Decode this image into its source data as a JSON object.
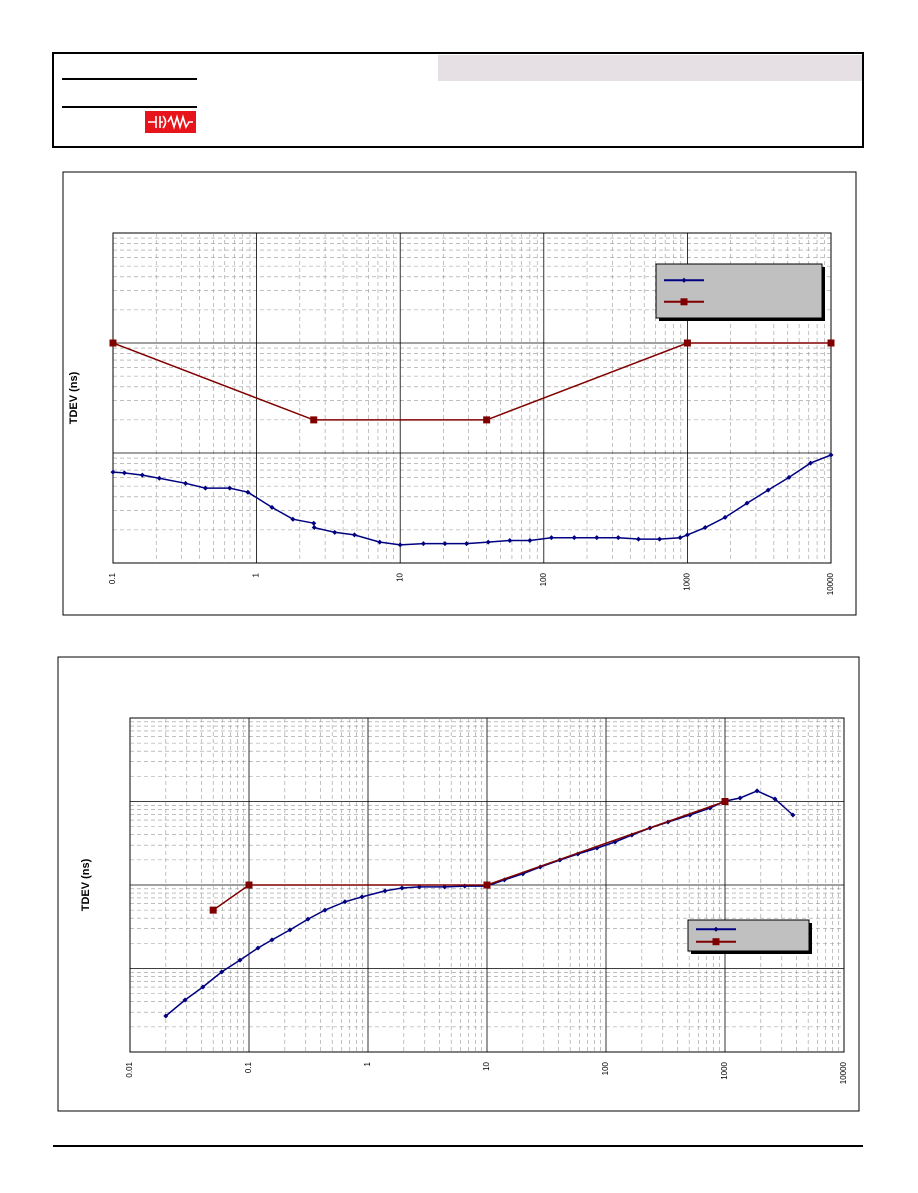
{
  "chart_data": [
    {
      "type": "line",
      "ylabel": "TDEV (ns)",
      "xlog": true,
      "ylog": true,
      "grid": true,
      "legend": "upper right",
      "xlim": [
        0.1,
        10000
      ],
      "ylim": [
        0.1,
        100
      ],
      "xticks": [
        0.1,
        1,
        10,
        100,
        1000,
        10000
      ],
      "series": [
        {
          "color": "#000080",
          "marker": "diamond",
          "x": [
            0.1,
            0.12,
            0.16,
            0.21,
            0.32,
            0.44,
            0.65,
            0.87,
            1.28,
            1.79,
            2.5,
            2.52,
            3.5,
            4.8,
            7.2,
            10,
            14.5,
            20.5,
            29,
            41,
            58,
            80,
            113,
            163,
            234,
            330,
            456,
            640,
            890,
            1000,
            1330,
            1830,
            2600,
            3650,
            5100,
            7200,
            10000
          ],
          "values": [
            0.67,
            0.66,
            0.63,
            0.59,
            0.53,
            0.48,
            0.48,
            0.44,
            0.32,
            0.25,
            0.23,
            0.21,
            0.19,
            0.18,
            0.155,
            0.146,
            0.15,
            0.15,
            0.15,
            0.155,
            0.16,
            0.16,
            0.17,
            0.17,
            0.17,
            0.17,
            0.165,
            0.165,
            0.17,
            0.18,
            0.21,
            0.26,
            0.35,
            0.46,
            0.6,
            0.81,
            0.96
          ]
        },
        {
          "color": "#800000",
          "marker": "square",
          "x": [
            0.1,
            2.5,
            40,
            1000,
            10000
          ],
          "values": [
            10,
            2,
            2,
            10,
            10
          ]
        }
      ]
    },
    {
      "type": "line",
      "ylabel": "TDEV (ns)",
      "xlog": true,
      "ylog": true,
      "grid": true,
      "legend": "lower right",
      "xlim": [
        0.01,
        10000
      ],
      "ylim": [
        0.01,
        100
      ],
      "xticks": [
        0.01,
        0.1,
        1,
        10,
        100,
        1000,
        10000
      ],
      "series": [
        {
          "color": "#000080",
          "marker": "diamond",
          "x": [
            0.02,
            0.029,
            0.041,
            0.059,
            0.084,
            0.119,
            0.156,
            0.221,
            0.313,
            0.435,
            0.64,
            0.89,
            1.39,
            1.93,
            2.7,
            4.4,
            6.5,
            10,
            14,
            20,
            28,
            41,
            58,
            84,
            119,
            165,
            234,
            332,
            508,
            748,
            1000,
            1340,
            1860,
            2630,
            3720
          ],
          "values": [
            0.027,
            0.042,
            0.06,
            0.091,
            0.126,
            0.176,
            0.22,
            0.29,
            0.39,
            0.5,
            0.63,
            0.72,
            0.85,
            0.92,
            0.95,
            0.95,
            0.97,
            0.97,
            1.15,
            1.36,
            1.64,
            1.99,
            2.35,
            2.77,
            3.27,
            3.97,
            4.82,
            5.68,
            6.89,
            8.36,
            10.1,
            11,
            13.4,
            10.7,
            6.9
          ]
        },
        {
          "color": "#800000",
          "marker": "square",
          "x": [
            0.05,
            0.1,
            10,
            1000
          ],
          "values": [
            0.5,
            1,
            1,
            10
          ]
        }
      ]
    }
  ]
}
